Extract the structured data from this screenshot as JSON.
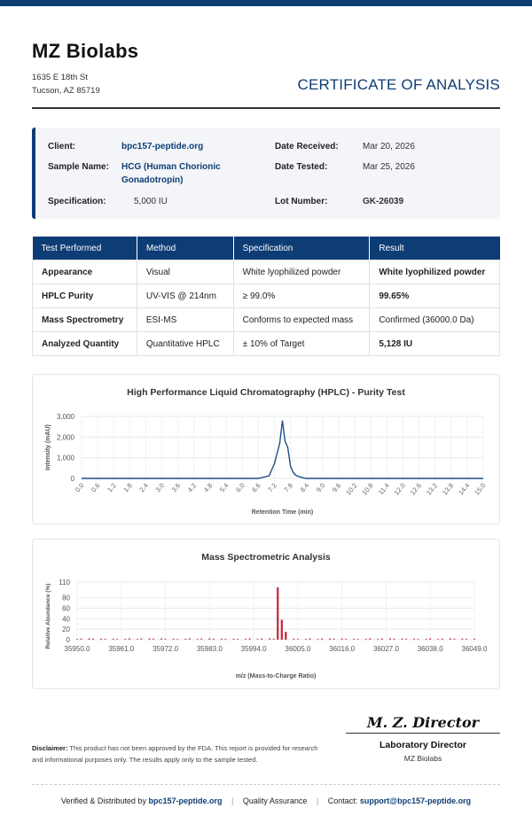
{
  "company": {
    "name": "MZ Biolabs",
    "address_line1": "1635 E 18th St",
    "address_line2": "Tucson, AZ 85719"
  },
  "document_title": "CERTIFICATE OF ANALYSIS",
  "colors": {
    "brand": "#0e3d75",
    "pass": "#2e9a3e",
    "ms_bar": "#c2263a",
    "hplc_line": "#1f4f86"
  },
  "info": {
    "client_label": "Client:",
    "client": "bpc157-peptide.org",
    "sample_label": "Sample Name:",
    "sample_line1": "HCG (Human Chorionic",
    "sample_line2": "Gonadotropin)",
    "spec_label": "Specification:",
    "spec": "5,000 IU",
    "received_label": "Date Received:",
    "received": "Mar 20, 2026",
    "tested_label": "Date Tested:",
    "tested": "Mar 25, 2026",
    "lot_label": "Lot Number:",
    "lot": "GK-26039"
  },
  "results_table": {
    "headers": [
      "Test Performed",
      "Method",
      "Specification",
      "Result"
    ],
    "rows": [
      [
        "Appearance",
        "Visual",
        "White lyophilized powder",
        "White lyophilized powder"
      ],
      [
        "HPLC Purity",
        "UV-VIS @ 214nm",
        "≥ 99.0%",
        "99.65%"
      ],
      [
        "Mass Spectrometry",
        "ESI-MS",
        "Conforms to expected mass",
        "Confirmed (36000.0 Da)"
      ],
      [
        "Analyzed Quantity",
        "Quantitative HPLC",
        "± 10% of Target",
        "5,128 IU"
      ]
    ]
  },
  "chart_data": [
    {
      "type": "line",
      "title": "High Performance Liquid Chromatography (HPLC) - Purity Test",
      "xlabel": "Retention Time (min)",
      "ylabel": "Intensity (mAU)",
      "ylim": [
        0,
        3000
      ],
      "yticks": [
        "3,000",
        "2,000",
        "1,000",
        "0"
      ],
      "xticks": [
        "0.0",
        "0.6",
        "1.2",
        "1.8",
        "2.4",
        "3.0",
        "3.6",
        "4.2",
        "4.8",
        "5.4",
        "6.0",
        "6.6",
        "7.2",
        "7.8",
        "8.4",
        "9.0",
        "9.6",
        "10.2",
        "10.8",
        "11.4",
        "12.0",
        "12.6",
        "13.2",
        "13.8",
        "14.4",
        "15.0"
      ],
      "grid": true,
      "x": [
        0.0,
        6.6,
        7.0,
        7.2,
        7.4,
        7.5,
        7.6,
        7.7,
        7.8,
        7.9,
        8.0,
        8.2,
        8.4,
        15.0
      ],
      "y": [
        0,
        0,
        120,
        700,
        1700,
        2800,
        1800,
        1500,
        600,
        300,
        150,
        50,
        0,
        0
      ]
    },
    {
      "type": "bar",
      "title": "Mass Spectrometric Analysis",
      "xlabel": "m/z (Mass-to-Charge Ratio)",
      "ylabel": "Relative Abundance (%)",
      "ylim": [
        0,
        110
      ],
      "yticks": [
        "110",
        "80",
        "60",
        "40",
        "20",
        "0"
      ],
      "xticks": [
        "35950.0",
        "35961.0",
        "35972.0",
        "35983.0",
        "35994.0",
        "36005.0",
        "36016.0",
        "36027.0",
        "36038.0",
        "36049.0"
      ],
      "grid": true,
      "peaks": [
        {
          "mz": 36000.0,
          "value": 100
        },
        {
          "mz": 36001.0,
          "value": 38
        },
        {
          "mz": 36002.0,
          "value": 15
        }
      ],
      "noise_level": 2.5
    }
  ],
  "signature": {
    "name": "M. Z. Director",
    "title": "Laboratory Director",
    "org": "MZ Biolabs"
  },
  "disclaimer": {
    "label": "Disclaimer:",
    "text": "This product has not been approved by the FDA. This report is provided for research and informational purposes only. The results apply only to the sample tested."
  },
  "footer": {
    "verified_text": "Verified & Distributed by",
    "verified_link": "bpc157-peptide.org",
    "sep": "|",
    "qa": "Quality Assurance",
    "contact_label": "Contact:",
    "contact_email": "support@bpc157-peptide.org"
  }
}
